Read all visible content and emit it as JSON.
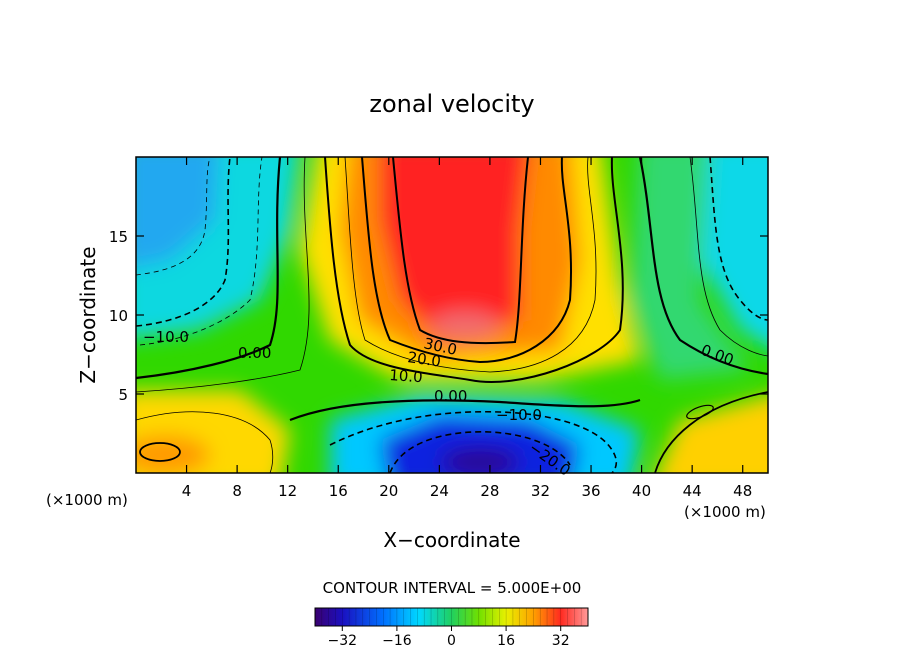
{
  "chart_data": {
    "type": "heatmap",
    "title": "zonal velocity",
    "xlabel": "X−coordinate",
    "ylabel": "Z−coordinate",
    "x_unit_left": "(×1000 m)",
    "x_unit_right": "(×1000 m)",
    "xlim": [
      0,
      50
    ],
    "ylim": [
      0,
      20
    ],
    "xticks": [
      "4",
      "8",
      "12",
      "16",
      "20",
      "24",
      "28",
      "32",
      "36",
      "40",
      "44",
      "48"
    ],
    "yticks": [
      "5",
      "10",
      "15"
    ],
    "contour_interval_text": "CONTOUR INTERVAL = 5.000E+00",
    "contour_labels": [
      "−10.0",
      "0.00",
      "30.0",
      "20.0",
      "10.0",
      "0.00",
      "−10.0",
      "−20.0",
      "0.00"
    ],
    "colorbar": {
      "range": [
        -40,
        40
      ],
      "ticks": [
        "−32",
        "−16",
        "0",
        "16",
        "32"
      ]
    },
    "colormap": [
      "#2a0060",
      "#1010d0",
      "#0090ff",
      "#00e0ff",
      "#20d070",
      "#30e000",
      "#c8f000",
      "#ffe000",
      "#ff8000",
      "#ff2020",
      "#f07070"
    ]
  }
}
